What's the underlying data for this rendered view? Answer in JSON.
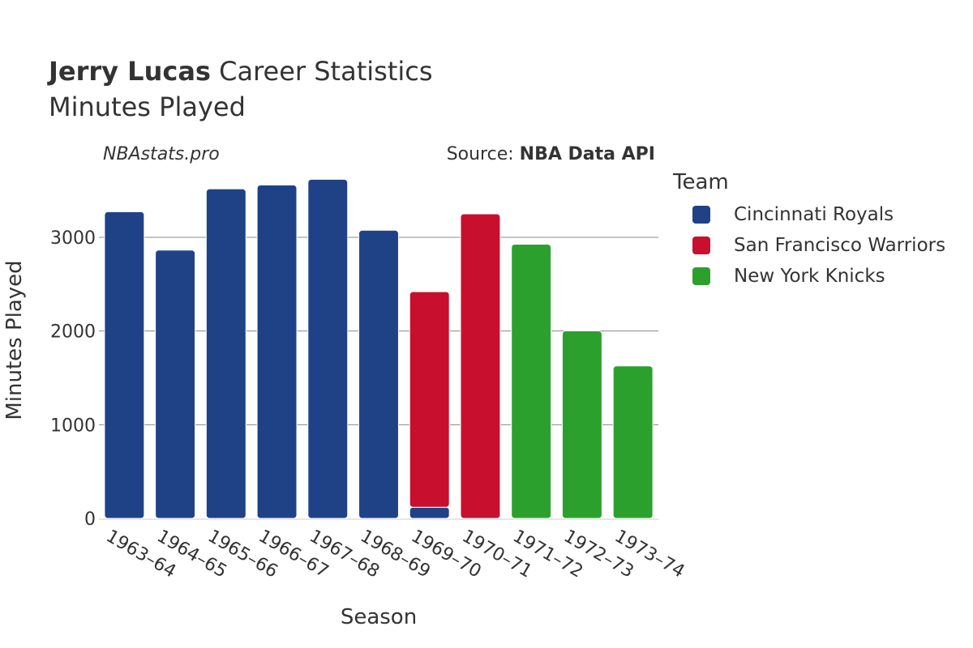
{
  "header": {
    "player_name": "Jerry Lucas",
    "title_rest": " Career Statistics",
    "subtitle": "Minutes Played"
  },
  "watermark": "NBAstats.pro",
  "source": {
    "prefix": "Source: ",
    "name": "NBA Data API"
  },
  "legend": {
    "title": "Team",
    "items": [
      {
        "label": "Cincinnati Royals",
        "color": "#1f4287"
      },
      {
        "label": "San Francisco Warriors",
        "color": "#c8102e"
      },
      {
        "label": "New York Knicks",
        "color": "#2ca02c"
      }
    ]
  },
  "chart_data": {
    "type": "bar",
    "stacked": true,
    "xlabel": "Season",
    "ylabel": "Minutes Played",
    "ylim": [
      0,
      3700
    ],
    "yticks": [
      0,
      1000,
      2000,
      3000
    ],
    "grid": true,
    "legend_position": "right",
    "categories": [
      "1963–64",
      "1964–65",
      "1965–66",
      "1966–67",
      "1967–68",
      "1968–69",
      "1969–70",
      "1970–71",
      "1971–72",
      "1972–73",
      "1973–74"
    ],
    "series": [
      {
        "name": "Cincinnati Royals",
        "color": "#1f4287",
        "values": [
          3273,
          2864,
          3517,
          3558,
          3619,
          3075,
          119,
          0,
          0,
          0,
          0
        ]
      },
      {
        "name": "San Francisco Warriors",
        "color": "#c8102e",
        "values": [
          0,
          0,
          0,
          0,
          0,
          0,
          2301,
          3251,
          0,
          0,
          0
        ]
      },
      {
        "name": "New York Knicks",
        "color": "#2ca02c",
        "values": [
          0,
          0,
          0,
          0,
          0,
          0,
          0,
          0,
          2926,
          2001,
          1627
        ]
      }
    ]
  }
}
